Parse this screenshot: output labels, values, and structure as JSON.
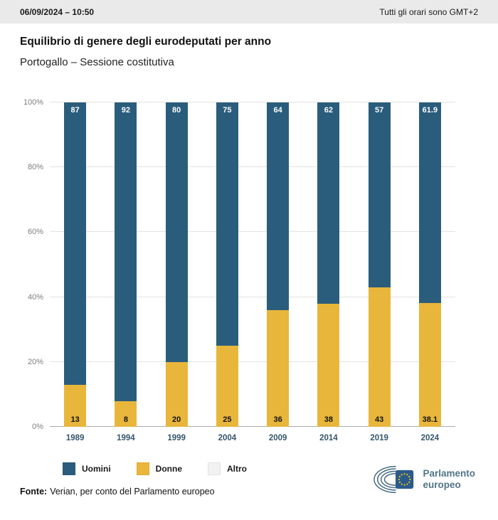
{
  "header": {
    "datetime": "06/09/2024 – 10:50",
    "timezone_note": "Tutti gli orari sono GMT+2"
  },
  "title": "Equilibrio di genere degli eurodeputati per anno",
  "subtitle": "Portogallo – Sessione costitutiva",
  "chart_data": {
    "type": "bar",
    "stacked": true,
    "percent_stacked": true,
    "categories": [
      "1989",
      "1994",
      "1999",
      "2004",
      "2009",
      "2014",
      "2019",
      "2024"
    ],
    "series": [
      {
        "name": "Uomini",
        "color": "#2a5d7c",
        "values": [
          87,
          92,
          80,
          75,
          64,
          62,
          57,
          61.9
        ]
      },
      {
        "name": "Donne",
        "color": "#e9b63c",
        "values": [
          13,
          8,
          20,
          25,
          36,
          38,
          43,
          38.1
        ]
      },
      {
        "name": "Altro",
        "color": "#f2f2f2",
        "values": [
          0,
          0,
          0,
          0,
          0,
          0,
          0,
          0
        ]
      }
    ],
    "ylim": [
      0,
      100
    ],
    "yticks": [
      "0%",
      "20%",
      "40%",
      "60%",
      "80%",
      "100%"
    ],
    "grid": true,
    "legend_position": "bottom"
  },
  "footer": {
    "source_label": "Fonte:",
    "source_text": "Verian, per conto del Parlamento europeo"
  },
  "logo": {
    "line1": "Parlamento",
    "line2": "europeo",
    "flag_color": "#2b5a8c",
    "star_color": "#ffcc00",
    "arc_color": "#436a80"
  }
}
